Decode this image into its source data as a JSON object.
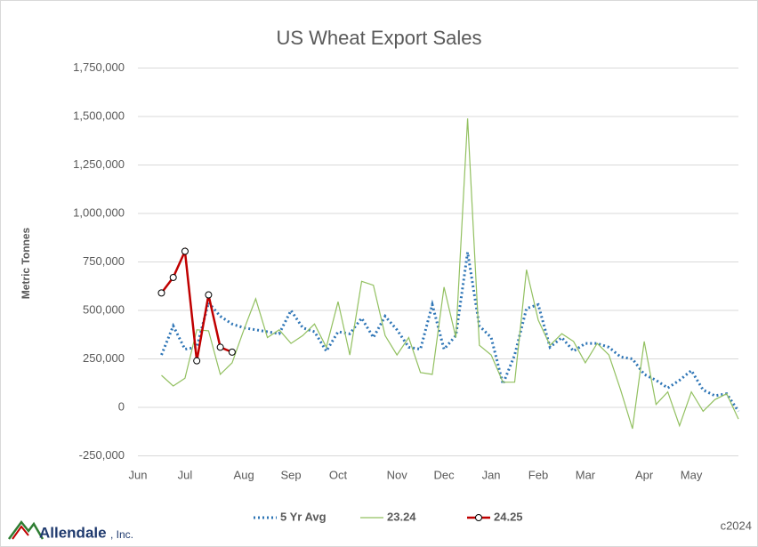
{
  "chart_data": {
    "type": "line",
    "title": "US Wheat Export Sales",
    "y_label": "Metric Tonnes",
    "categories": [
      "Jun",
      null,
      null,
      null,
      "Jul",
      null,
      null,
      null,
      null,
      "Aug",
      null,
      null,
      null,
      "Sep",
      null,
      null,
      null,
      "Oct",
      null,
      null,
      null,
      null,
      "Nov",
      null,
      null,
      null,
      "Dec",
      null,
      null,
      null,
      "Jan",
      null,
      null,
      null,
      "Feb",
      null,
      null,
      null,
      "Mar",
      null,
      null,
      null,
      null,
      "Apr",
      null,
      null,
      null,
      "May",
      null,
      null,
      null,
      null
    ],
    "series": [
      {
        "name": "5 Yr Avg",
        "color": "#2e75b6",
        "dash": true,
        "markers": false,
        "values": [
          null,
          null,
          270000,
          420000,
          300000,
          310000,
          540000,
          470000,
          430000,
          410000,
          400000,
          390000,
          380000,
          500000,
          410000,
          390000,
          290000,
          390000,
          380000,
          460000,
          360000,
          470000,
          400000,
          310000,
          300000,
          530000,
          300000,
          370000,
          800000,
          420000,
          360000,
          120000,
          270000,
          510000,
          530000,
          310000,
          360000,
          290000,
          330000,
          330000,
          310000,
          260000,
          250000,
          170000,
          140000,
          100000,
          140000,
          190000,
          90000,
          60000,
          70000,
          -20000
        ]
      },
      {
        "name": "23.24",
        "color": "#92c060",
        "dash": false,
        "markers": false,
        "values": [
          null,
          null,
          165000,
          110000,
          150000,
          400000,
          395000,
          170000,
          230000,
          400000,
          560000,
          360000,
          400000,
          330000,
          370000,
          430000,
          310000,
          545000,
          270000,
          650000,
          630000,
          370000,
          270000,
          360000,
          180000,
          170000,
          620000,
          360000,
          1490000,
          320000,
          270000,
          130000,
          130000,
          710000,
          450000,
          320000,
          380000,
          340000,
          230000,
          330000,
          270000,
          90000,
          -110000,
          340000,
          15000,
          80000,
          -95000,
          80000,
          -20000,
          40000,
          70000,
          -60000
        ]
      },
      {
        "name": "24.25",
        "color": "#c00000",
        "dash": false,
        "markers": true,
        "values": [
          null,
          null,
          590000,
          670000,
          805000,
          240000,
          580000,
          310000,
          285000,
          null,
          null,
          null,
          null,
          null,
          null,
          null,
          null,
          null,
          null,
          null,
          null,
          null,
          null,
          null,
          null,
          null,
          null,
          null,
          null,
          null,
          null,
          null,
          null,
          null,
          null,
          null,
          null,
          null,
          null,
          null,
          null,
          null,
          null,
          null,
          null,
          null,
          null,
          null,
          null,
          null,
          null,
          null
        ]
      }
    ],
    "ylim": [
      -250000,
      1750000
    ],
    "yticks": [
      {
        "value": -250000,
        "label": "-250,000"
      },
      0,
      {
        "value": 250000,
        "label": "250,000"
      },
      {
        "value": 500000,
        "label": "500,000"
      },
      {
        "value": 750000,
        "label": "750,000"
      },
      {
        "value": 1000000,
        "label": "1,000,000"
      },
      {
        "value": 1250000,
        "label": "1,250,000"
      },
      {
        "value": 1500000,
        "label": "1,500,000"
      },
      {
        "value": 1750000,
        "label": "1,750,000"
      }
    ],
    "grid": true,
    "legend": "bottom",
    "brand_name": "Allendale",
    "brand_suffix": ", Inc.",
    "footer": "c2024"
  }
}
